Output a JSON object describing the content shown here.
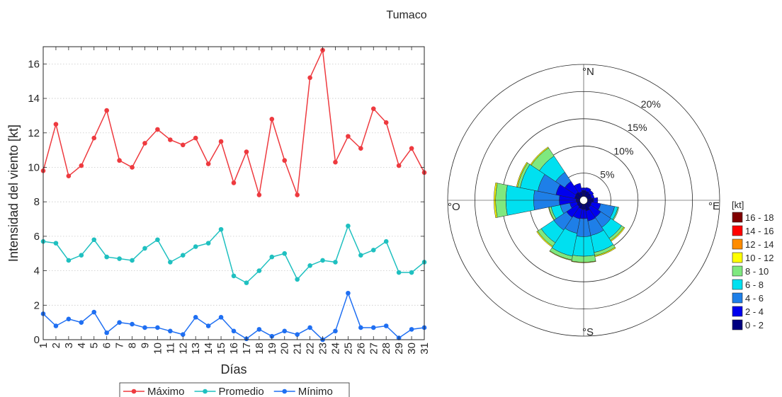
{
  "figure_title": "Tumaco",
  "chart_data": [
    {
      "type": "line",
      "xlabel": "Días",
      "ylabel": "Intensidad del viento [kt]",
      "x": [
        1,
        2,
        3,
        4,
        5,
        6,
        7,
        8,
        9,
        10,
        11,
        12,
        13,
        14,
        15,
        16,
        17,
        18,
        19,
        20,
        21,
        22,
        23,
        24,
        25,
        26,
        27,
        28,
        29,
        30,
        31
      ],
      "xlim": [
        1,
        31
      ],
      "ylim": [
        0,
        17
      ],
      "yticks": [
        0,
        2,
        4,
        6,
        8,
        10,
        12,
        14,
        16
      ],
      "grid": "y-dotted",
      "legend_position": "bottom",
      "series": [
        {
          "name": "Máximo",
          "color": "#ee3a3f",
          "values": [
            9.8,
            12.5,
            9.5,
            10.1,
            11.7,
            13.3,
            10.4,
            10.0,
            11.4,
            12.2,
            11.6,
            11.3,
            11.7,
            10.2,
            11.5,
            9.1,
            10.9,
            8.4,
            12.8,
            10.4,
            8.4,
            15.2,
            16.8,
            10.3,
            11.8,
            11.1,
            13.4,
            12.6,
            10.1,
            11.1,
            9.7
          ]
        },
        {
          "name": "Promedio",
          "color": "#1fc0c0",
          "values": [
            5.7,
            5.6,
            4.6,
            4.9,
            5.8,
            4.8,
            4.7,
            4.6,
            5.3,
            5.8,
            4.5,
            4.9,
            5.4,
            5.6,
            6.4,
            3.7,
            3.3,
            4.0,
            4.8,
            5.0,
            3.5,
            4.3,
            4.6,
            4.5,
            6.6,
            4.9,
            5.2,
            5.7,
            3.9,
            3.9,
            4.5
          ]
        },
        {
          "name": "Mínimo",
          "color": "#1f6ff2",
          "values": [
            1.5,
            0.8,
            1.2,
            1.0,
            1.6,
            0.4,
            1.0,
            0.9,
            0.7,
            0.7,
            0.5,
            0.3,
            1.3,
            0.8,
            1.3,
            0.5,
            0.05,
            0.6,
            0.2,
            0.5,
            0.3,
            0.7,
            0.0,
            0.5,
            2.7,
            0.7,
            0.7,
            0.8,
            0.1,
            0.6,
            0.7
          ]
        }
      ]
    },
    {
      "type": "windrose",
      "direction_labels": {
        "n": "°N",
        "e": "°E",
        "s": "°S",
        "w": "°O"
      },
      "radial_labels": [
        "5%",
        "10%",
        "15%",
        "20%"
      ],
      "radial_values": [
        5,
        10,
        15,
        20
      ],
      "rmax": 25,
      "legend_title": "[kt]",
      "bins": [
        {
          "label": "0 - 2",
          "color": "#000080"
        },
        {
          "label": "2 - 4",
          "color": "#0000ee"
        },
        {
          "label": "4 - 6",
          "color": "#1e7fe8"
        },
        {
          "label": "6 - 8",
          "color": "#00e0f0"
        },
        {
          "label": "8 - 10",
          "color": "#7fe87f"
        },
        {
          "label": "10 - 12",
          "color": "#ffff00"
        },
        {
          "label": "12 - 14",
          "color": "#ff8c00"
        },
        {
          "label": "14 - 16",
          "color": "#ff0000"
        },
        {
          "label": "16 - 18",
          "color": "#800000"
        }
      ],
      "sectors": [
        {
          "dir": 0,
          "cum": [
            1.8,
            2.3
          ]
        },
        {
          "dir": 22.5,
          "cum": [
            1.7,
            2.4
          ]
        },
        {
          "dir": 45,
          "cum": [
            1.6,
            2.2
          ]
        },
        {
          "dir": 67.5,
          "cum": [
            1.5,
            2.0
          ]
        },
        {
          "dir": 90,
          "cum": [
            1.8,
            2.6
          ]
        },
        {
          "dir": 112.5,
          "cum": [
            1.5,
            3.2,
            5.8,
            6.4,
            6.6
          ]
        },
        {
          "dir": 135,
          "cum": [
            1.6,
            3.8,
            6.0,
            8.4,
            8.9,
            9.1
          ]
        },
        {
          "dir": 157.5,
          "cum": [
            2.0,
            3.9,
            6.6,
            9.8,
            10.4,
            10.6
          ]
        },
        {
          "dir": 180,
          "cum": [
            1.7,
            3.4,
            6.7,
            10.3,
            11.4,
            11.5
          ]
        },
        {
          "dir": 202.5,
          "cum": [
            1.6,
            3.5,
            6.2,
            10.5,
            11.2,
            11.3
          ]
        },
        {
          "dir": 225,
          "cum": [
            1.4,
            3.8,
            6.6,
            9.4,
            10.2,
            10.4
          ]
        },
        {
          "dir": 247.5,
          "cum": [
            1.3,
            2.6,
            4.4,
            6.1,
            6.5,
            6.6
          ]
        },
        {
          "dir": 270,
          "cum": [
            1.4,
            4.5,
            9.2,
            14.3,
            16.2,
            16.5
          ]
        },
        {
          "dir": 292.5,
          "cum": [
            1.7,
            5.2,
            8.6,
            11.9,
            12.4,
            12.6
          ]
        },
        {
          "dir": 315,
          "cum": [
            1.8,
            4.2,
            6.2,
            9.8,
            11.6,
            11.8
          ]
        },
        {
          "dir": 337.5,
          "cum": [
            1.6,
            3.2
          ]
        }
      ]
    }
  ]
}
